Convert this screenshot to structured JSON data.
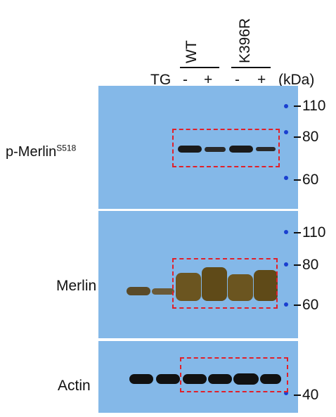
{
  "header": {
    "treatment_label": "TG",
    "group_wt": "WT",
    "group_mut": "K396R",
    "lane_signs": [
      "-",
      "+",
      "-",
      "+"
    ],
    "unit_label": "(kDa)"
  },
  "panels": {
    "pmerlin": {
      "label_main": "p-Merlin",
      "label_sup": "S518",
      "markers": [
        "110",
        "80",
        "60"
      ]
    },
    "merlin": {
      "label": "Merlin",
      "markers": [
        "110",
        "80",
        "60"
      ]
    },
    "actin": {
      "label": "Actin",
      "markers": [
        "40"
      ]
    }
  },
  "colors": {
    "membrane": "#84b8e8",
    "box": "#e0202a",
    "band": "#1a1a1a",
    "merlin_band": "#6b5520",
    "ladder": "#1a3fd0"
  }
}
